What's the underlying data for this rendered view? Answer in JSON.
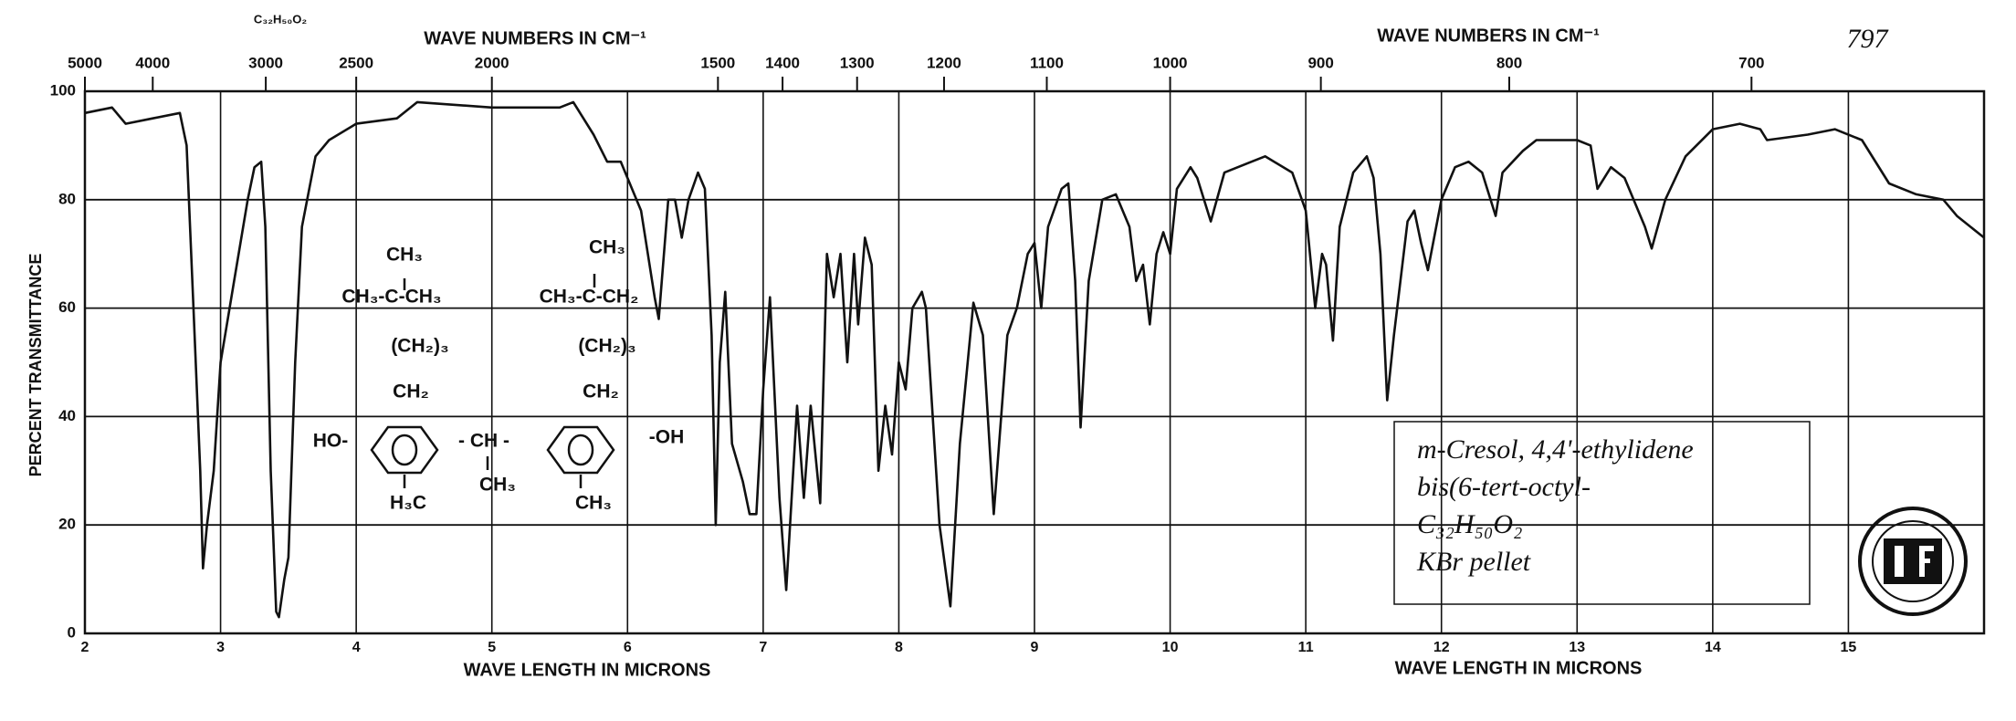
{
  "chart_data": {
    "type": "line",
    "formula": "C₃₂H₅₀O₂",
    "spectrum_number": "797",
    "x2_title": "WAVE NUMBERS IN CM⁻¹",
    "x_title": "WAVE LENGTH IN MICRONS",
    "y_title": "PERCENT TRANSMITTANCE",
    "annotation": [
      "m-Cresol, 4,4'-ethylidene",
      "bis(6-tert-octyl-",
      "C₃₂H₅₀O₂",
      "KBr pellet"
    ],
    "structure": [
      "CH₃",
      "CH₃-C-CH₃",
      "(CH₂)₃",
      "CH₂",
      "HO-",
      "- CH -",
      "CH₃",
      "H₃C",
      "CH₃",
      "CH₃-C-CH₂",
      "(CH₂)₃",
      "CH₂",
      "-OH",
      "CH₃"
    ],
    "color": "#111111",
    "grid": true,
    "xlim": [
      2,
      16
    ],
    "ylim": [
      0,
      100
    ],
    "xticks": [
      2,
      3,
      4,
      5,
      6,
      7,
      8,
      9,
      10,
      11,
      12,
      13,
      14,
      15
    ],
    "yticks": [
      0,
      20,
      40,
      60,
      80,
      100
    ],
    "x2ticks": [
      5000,
      4000,
      3000,
      2500,
      2000,
      1500,
      1400,
      1300,
      1200,
      1100,
      1000,
      900,
      800,
      700
    ],
    "x": [
      2.0,
      2.2,
      2.3,
      2.5,
      2.7,
      2.75,
      2.8,
      2.85,
      2.87,
      2.9,
      2.95,
      3.0,
      3.1,
      3.2,
      3.25,
      3.3,
      3.33,
      3.37,
      3.41,
      3.43,
      3.47,
      3.5,
      3.55,
      3.6,
      3.7,
      3.8,
      4.0,
      4.3,
      4.45,
      5.0,
      5.5,
      5.6,
      5.75,
      5.85,
      5.95,
      6.1,
      6.2,
      6.23,
      6.3,
      6.35,
      6.4,
      6.45,
      6.52,
      6.57,
      6.62,
      6.65,
      6.68,
      6.72,
      6.77,
      6.85,
      6.9,
      6.95,
      7.0,
      7.05,
      7.12,
      7.17,
      7.25,
      7.3,
      7.35,
      7.42,
      7.47,
      7.52,
      7.57,
      7.62,
      7.67,
      7.7,
      7.75,
      7.8,
      7.85,
      7.9,
      7.95,
      8.0,
      8.05,
      8.1,
      8.17,
      8.2,
      8.3,
      8.38,
      8.45,
      8.55,
      8.62,
      8.7,
      8.8,
      8.87,
      8.95,
      9.0,
      9.05,
      9.1,
      9.2,
      9.25,
      9.3,
      9.34,
      9.4,
      9.5,
      9.6,
      9.7,
      9.75,
      9.8,
      9.85,
      9.9,
      9.95,
      10.0,
      10.05,
      10.15,
      10.2,
      10.3,
      10.4,
      10.6,
      10.7,
      10.9,
      11.0,
      11.07,
      11.12,
      11.15,
      11.2,
      11.25,
      11.35,
      11.45,
      11.5,
      11.55,
      11.6,
      11.65,
      11.75,
      11.8,
      11.85,
      11.9,
      12.0,
      12.1,
      12.2,
      12.3,
      12.4,
      12.45,
      12.6,
      12.7,
      13.0,
      13.1,
      13.15,
      13.25,
      13.35,
      13.5,
      13.55,
      13.65,
      13.8,
      14.0,
      14.2,
      14.35,
      14.4,
      14.7,
      14.9,
      15.1,
      15.3,
      15.5,
      15.7,
      15.8,
      16.0
    ],
    "values": [
      96,
      97,
      94,
      95,
      96,
      90,
      60,
      30,
      12,
      20,
      30,
      50,
      65,
      80,
      86,
      87,
      75,
      30,
      4,
      3,
      10,
      14,
      50,
      75,
      88,
      91,
      94,
      95,
      98,
      97,
      97,
      98,
      92,
      87,
      87,
      78,
      62,
      58,
      80,
      80,
      73,
      80,
      85,
      82,
      55,
      20,
      50,
      63,
      35,
      28,
      22,
      22,
      45,
      62,
      25,
      8,
      42,
      25,
      42,
      24,
      70,
      62,
      70,
      50,
      70,
      57,
      73,
      68,
      30,
      42,
      33,
      50,
      45,
      60,
      63,
      60,
      20,
      5,
      35,
      61,
      55,
      22,
      55,
      60,
      70,
      72,
      60,
      75,
      82,
      83,
      65,
      38,
      65,
      80,
      81,
      75,
      65,
      68,
      57,
      70,
      74,
      70,
      82,
      86,
      84,
      76,
      85,
      87,
      88,
      85,
      78,
      60,
      70,
      68,
      54,
      75,
      85,
      88,
      84,
      70,
      43,
      55,
      76,
      78,
      72,
      67,
      80,
      86,
      87,
      85,
      77,
      85,
      89,
      91,
      91,
      90,
      82,
      86,
      84,
      75,
      71,
      80,
      88,
      93,
      94,
      93,
      91,
      92,
      93,
      91,
      83,
      81,
      80,
      77,
      73
    ]
  }
}
